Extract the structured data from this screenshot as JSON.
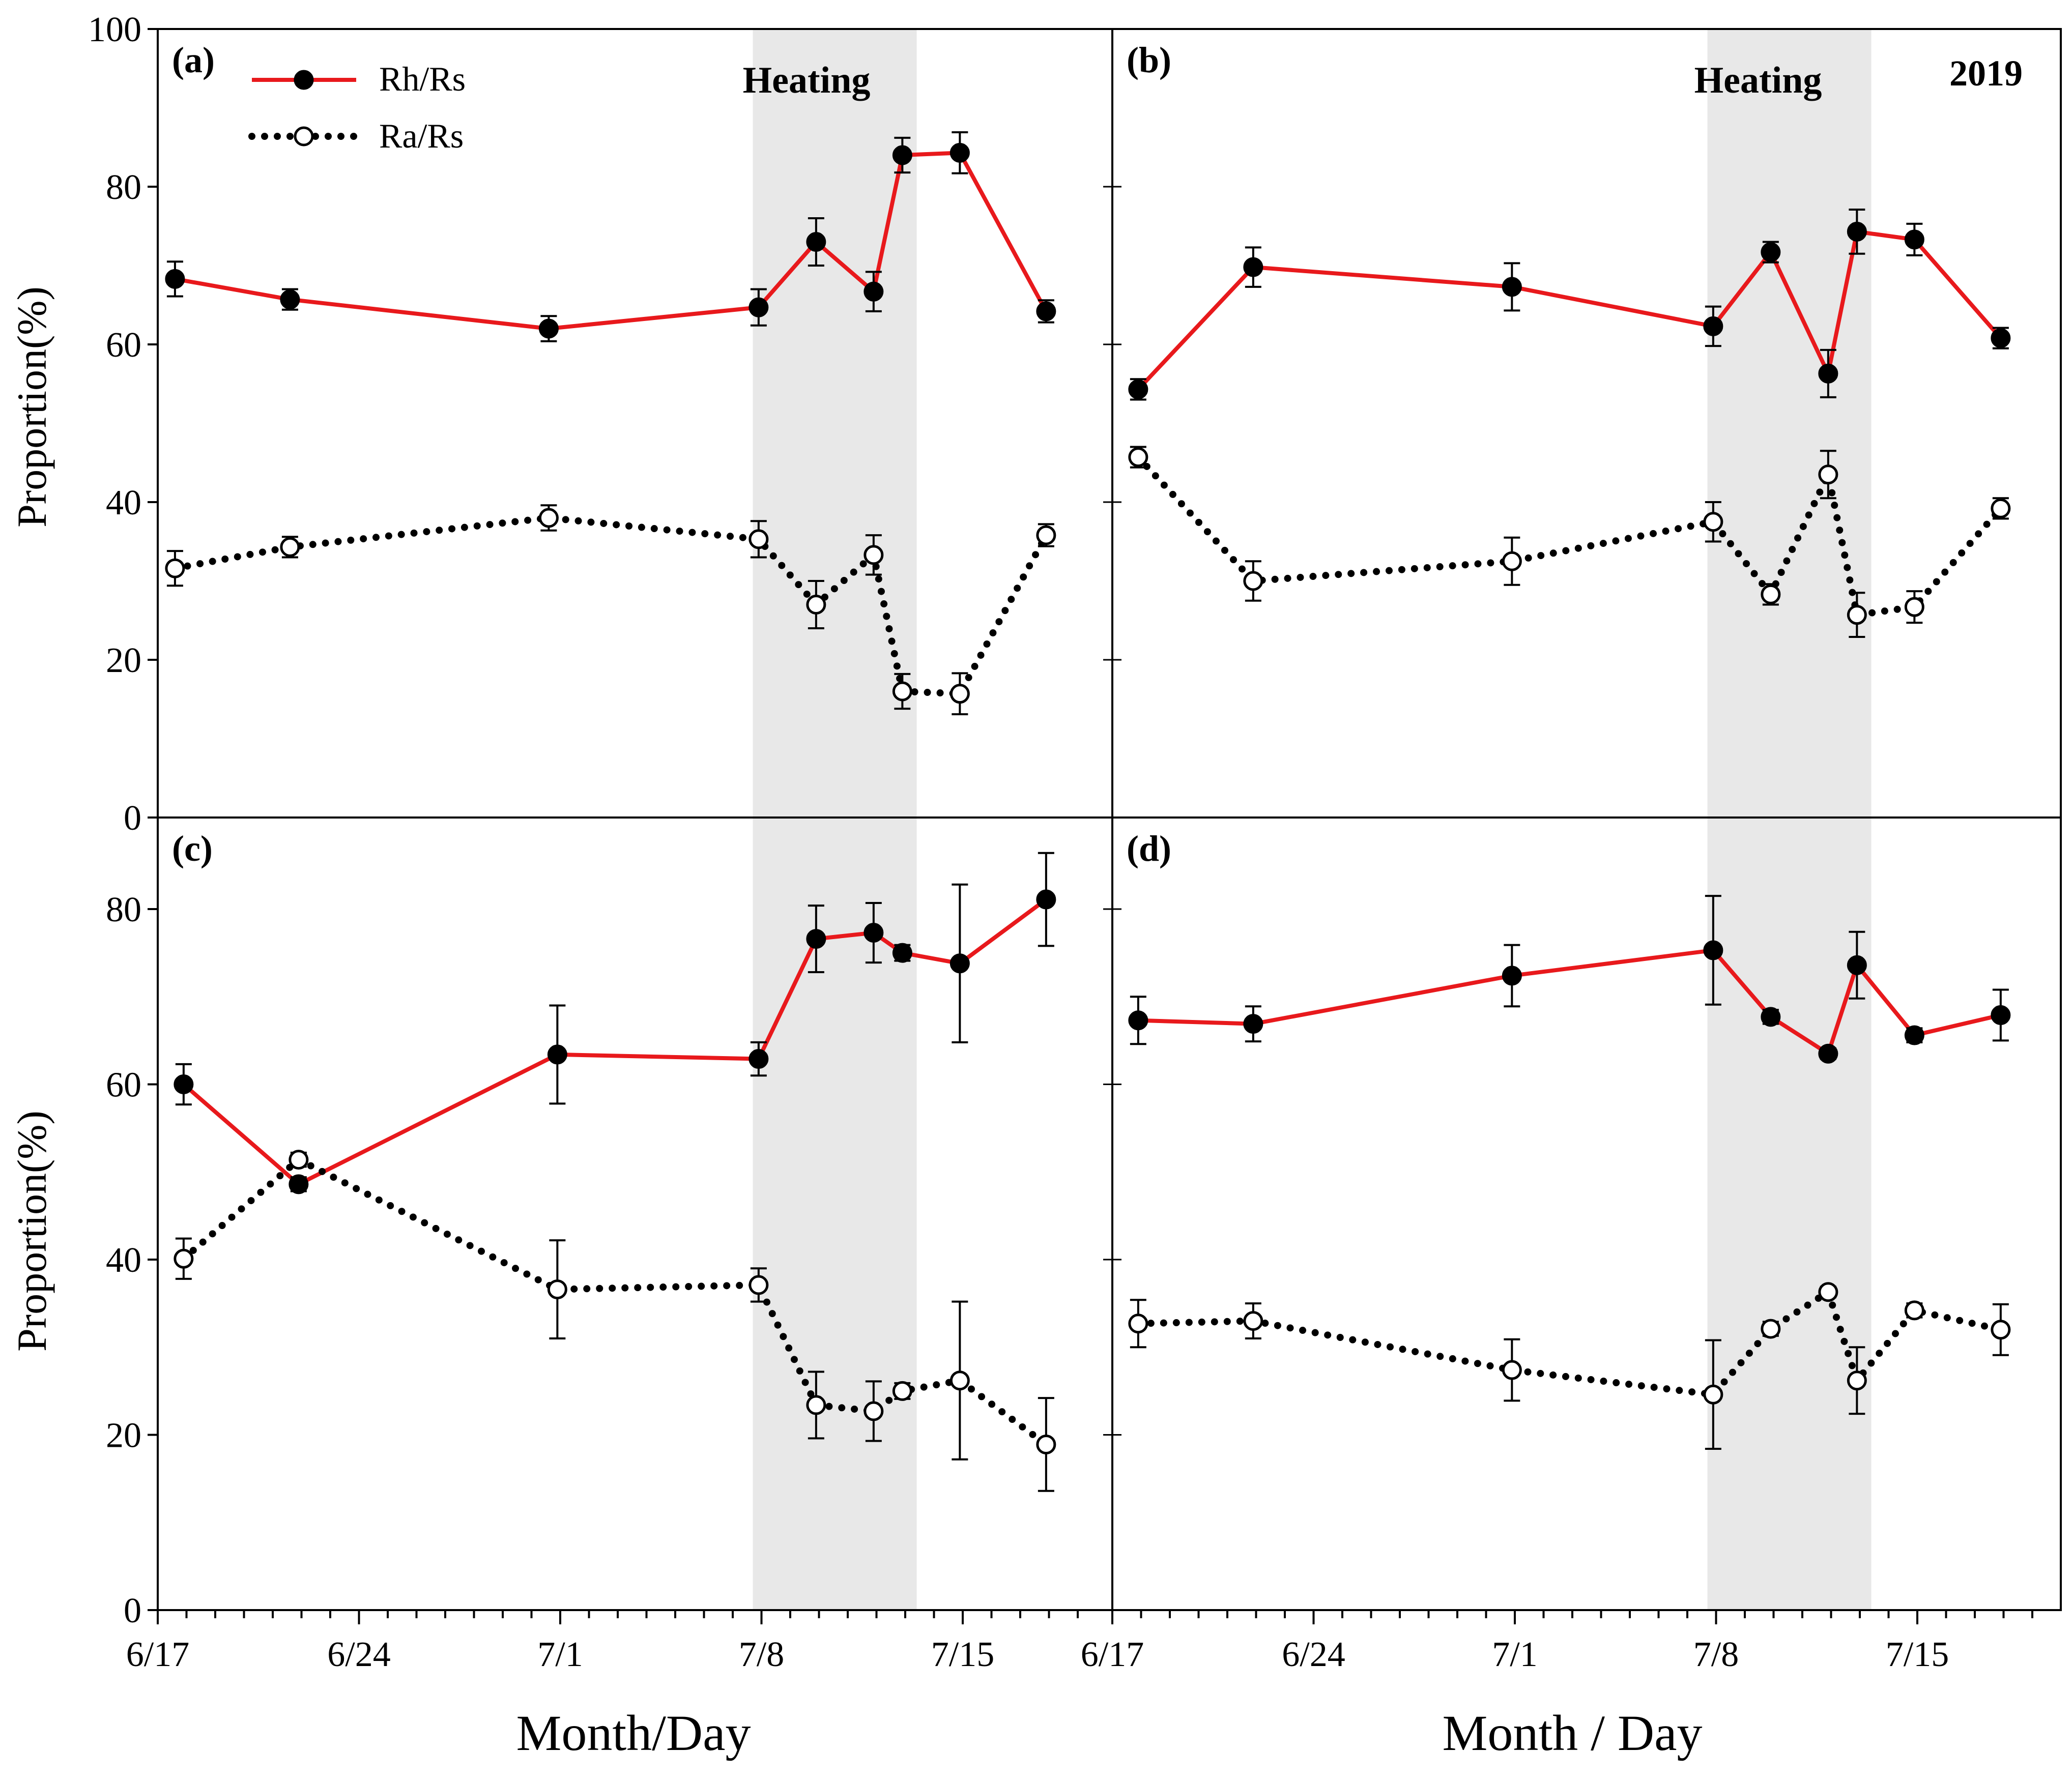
{
  "figure": {
    "ylabel": "Proportion(%)",
    "xlabel_left": "Month/Day",
    "xlabel_right": "Month / Day",
    "heating_label": "Heating",
    "year_label": "2019",
    "colors": {
      "rh": "#e8191c",
      "ra": "#000000",
      "heating": "#e8e8e8"
    }
  },
  "legend": {
    "rh": "Rh/Rs",
    "ra": "Ra/Rs"
  },
  "chart_data": [
    {
      "type": "line",
      "panel": "(a)",
      "xlim": [
        "6/17",
        "7/20"
      ],
      "ylim": [
        0,
        100
      ],
      "x_ticks": [
        "6/17",
        "6/24",
        "7/1",
        "7/8",
        "7/15"
      ],
      "y_ticks": [
        0,
        20,
        40,
        60,
        80,
        100
      ],
      "heating": [
        "7/7.7",
        "7/13.4"
      ],
      "series": [
        {
          "name": "Rh/Rs",
          "x": [
            17.6,
            21.6,
            30.6,
            37.9,
            39.9,
            41.9,
            42.9,
            44.9,
            47.9
          ],
          "y": [
            68.3,
            65.7,
            62.0,
            64.7,
            73.0,
            66.7,
            84.0,
            84.3,
            64.2
          ],
          "err": [
            2.2,
            1.3,
            1.6,
            2.3,
            3.0,
            2.5,
            2.2,
            2.6,
            1.4
          ]
        },
        {
          "name": "Ra/Rs",
          "x": [
            17.6,
            21.6,
            30.6,
            37.9,
            39.9,
            41.9,
            42.9,
            44.9,
            47.9
          ],
          "y": [
            31.6,
            34.3,
            38.0,
            35.3,
            27.0,
            33.3,
            16.0,
            15.7,
            35.8
          ],
          "err": [
            2.2,
            1.3,
            1.6,
            2.3,
            3.0,
            2.5,
            2.2,
            2.6,
            1.4
          ]
        }
      ]
    },
    {
      "type": "line",
      "panel": "(b)",
      "xlim": [
        "6/17",
        "7/20"
      ],
      "ylim": [
        0,
        100
      ],
      "x_ticks": [
        "6/17",
        "6/24",
        "7/1",
        "7/8",
        "7/15"
      ],
      "y_ticks": [
        0,
        20,
        40,
        60,
        80,
        100
      ],
      "heating": [
        "7/7.7",
        "7/13.4"
      ],
      "series": [
        {
          "name": "Rh/Rs",
          "x": [
            17.9,
            21.9,
            30.9,
            37.9,
            39.9,
            41.9,
            42.9,
            44.9,
            47.9
          ],
          "y": [
            54.3,
            69.8,
            67.3,
            62.3,
            71.7,
            56.3,
            74.3,
            73.3,
            60.8
          ],
          "err": [
            1.3,
            2.5,
            3.0,
            2.5,
            1.3,
            3.0,
            2.8,
            2.0,
            1.3
          ]
        },
        {
          "name": "Ra/Rs",
          "x": [
            17.9,
            21.9,
            30.9,
            37.9,
            39.9,
            41.9,
            42.9,
            44.9,
            47.9
          ],
          "y": [
            45.7,
            30.0,
            32.5,
            37.5,
            28.3,
            43.5,
            25.7,
            26.7,
            39.2
          ],
          "err": [
            1.3,
            2.5,
            3.0,
            2.5,
            1.3,
            3.0,
            2.8,
            2.0,
            1.3
          ]
        }
      ]
    },
    {
      "type": "line",
      "panel": "(c)",
      "xlim": [
        "6/17",
        "7/20"
      ],
      "ylim": [
        0,
        90
      ],
      "x_ticks": [
        "6/17",
        "6/24",
        "7/1",
        "7/8",
        "7/15"
      ],
      "y_ticks": [
        0,
        20,
        40,
        60,
        80
      ],
      "heating": [
        "7/7.7",
        "7/13.4"
      ],
      "series": [
        {
          "name": "Rh/Rs",
          "x": [
            17.9,
            21.9,
            30.9,
            37.9,
            39.9,
            41.9,
            42.9,
            44.9,
            47.9
          ],
          "y": [
            60.0,
            48.6,
            63.4,
            62.9,
            76.6,
            77.3,
            75.0,
            73.8,
            81.1
          ],
          "err": [
            2.3,
            0.8,
            5.6,
            1.9,
            3.8,
            3.4,
            0.9,
            9.0,
            5.3
          ]
        },
        {
          "name": "Ra/Rs",
          "x": [
            17.9,
            21.9,
            30.9,
            37.9,
            39.9,
            41.9,
            42.9,
            44.9,
            47.9
          ],
          "y": [
            40.1,
            51.4,
            36.6,
            37.1,
            23.4,
            22.7,
            25.0,
            26.2,
            18.9
          ],
          "err": [
            2.3,
            0.8,
            5.6,
            1.9,
            3.8,
            3.4,
            0.9,
            9.0,
            5.3
          ]
        }
      ]
    },
    {
      "type": "line",
      "panel": "(d)",
      "xlim": [
        "6/17",
        "7/20"
      ],
      "ylim": [
        0,
        90
      ],
      "x_ticks": [
        "6/17",
        "6/24",
        "7/1",
        "7/8",
        "7/15"
      ],
      "y_ticks": [
        0,
        20,
        40,
        60,
        80
      ],
      "heating": [
        "7/7.7",
        "7/13.4"
      ],
      "series": [
        {
          "name": "Rh/Rs",
          "x": [
            17.9,
            21.9,
            30.9,
            37.9,
            39.9,
            41.9,
            42.9,
            44.9,
            47.9
          ],
          "y": [
            67.3,
            66.9,
            72.4,
            75.3,
            67.7,
            63.5,
            73.6,
            65.6,
            67.9
          ],
          "err": [
            2.7,
            2.0,
            3.5,
            6.2,
            0.8,
            0.6,
            3.8,
            0.8,
            2.9
          ]
        },
        {
          "name": "Ra/Rs",
          "x": [
            17.9,
            21.9,
            30.9,
            37.9,
            39.9,
            41.9,
            42.9,
            44.9,
            47.9
          ],
          "y": [
            32.7,
            33.0,
            27.4,
            24.6,
            32.1,
            36.3,
            26.2,
            34.2,
            32.0
          ],
          "err": [
            2.7,
            2.0,
            3.5,
            6.2,
            0.8,
            0.6,
            3.8,
            0.8,
            2.9
          ]
        }
      ]
    }
  ]
}
